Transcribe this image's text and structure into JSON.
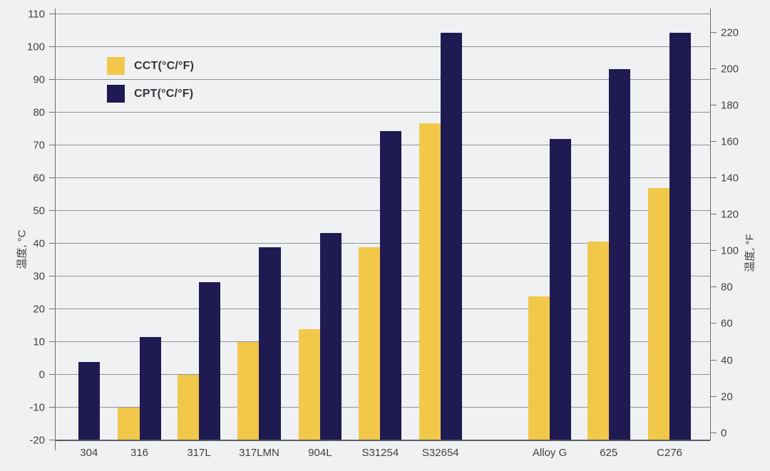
{
  "chart_data": {
    "type": "bar",
    "title": "",
    "categories": [
      "304",
      "316",
      "317L",
      "317LMN",
      "904L",
      "S31254",
      "S32654",
      "Alloy G",
      "625",
      "C276"
    ],
    "series": [
      {
        "name": "CCT(°C/°F)",
        "color": "#f2c84b",
        "values_c": [
          null,
          -10,
          0,
          10,
          13.9,
          38.9,
          76.7,
          23.9,
          40.7,
          57
        ]
      },
      {
        "name": "CPT(°C/°F)",
        "color": "#1f1a51",
        "values_c": [
          4,
          11.5,
          28.3,
          38.9,
          43.3,
          74.4,
          104.4,
          72,
          93.3,
          104.4
        ]
      }
    ],
    "left_axis": {
      "label": "温度, °C",
      "min": -20,
      "max": 110,
      "step": 10
    },
    "right_axis": {
      "label": "温度, °F",
      "min": 0,
      "max": 220,
      "step": 20
    },
    "grid": true,
    "legend_position": "top-left-inside",
    "group_gap_after_index": 6,
    "x_centers_pct": [
      5.1,
      12.8,
      21.9,
      31.1,
      40.4,
      49.6,
      58.8,
      75.5,
      84.5,
      93.8
    ],
    "bar_width_pct": 3.27
  }
}
